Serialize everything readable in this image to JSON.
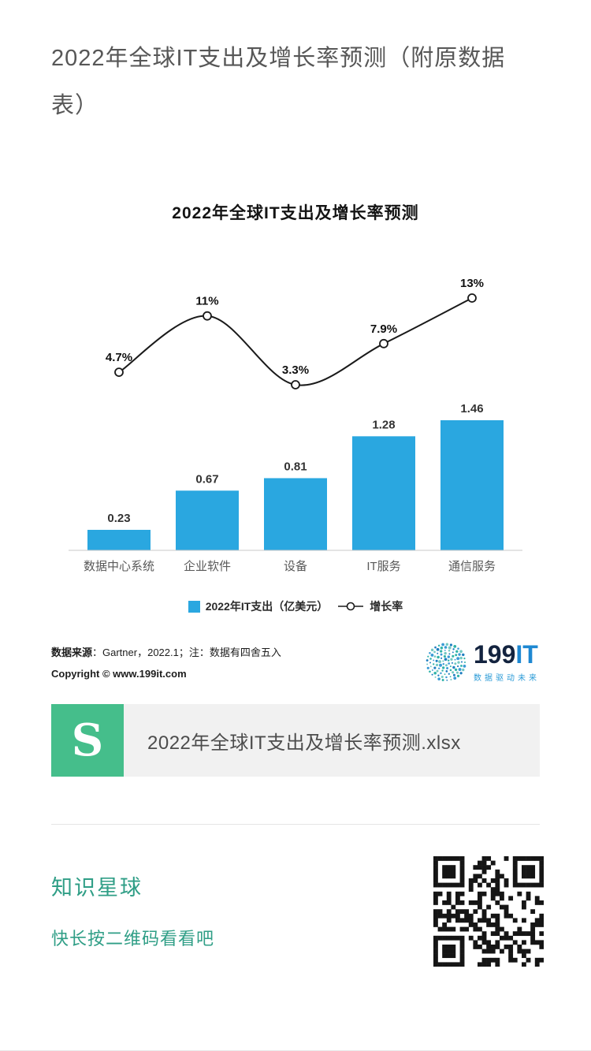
{
  "page": {
    "title": "2022年全球IT支出及增长率预测（附原数据表）"
  },
  "chart_data": {
    "type": "bar",
    "subtype": "combo-bar-line",
    "title": "2022年全球IT支出及增长率预测",
    "categories": [
      "数据中心系统",
      "企业软件",
      "设备",
      "IT服务",
      "通信服务"
    ],
    "series": [
      {
        "name": "2022年IT支出（亿美元）",
        "type": "bar",
        "values": [
          0.23,
          0.67,
          0.81,
          1.28,
          1.46
        ],
        "labels": [
          "0.23",
          "0.67",
          "0.81",
          "1.28",
          "1.46"
        ],
        "color": "#2aa7e0"
      },
      {
        "name": "增长率",
        "type": "line",
        "values": [
          4.7,
          11,
          3.3,
          7.9,
          13
        ],
        "labels": [
          "4.7%",
          "11%",
          "3.3%",
          "7.9%",
          "13%"
        ],
        "color": "#1a1a1a"
      }
    ],
    "legend_position": "bottom",
    "grid": false,
    "ylabel": "",
    "xlabel": ""
  },
  "chart_footer": {
    "source_bold": "数据来源",
    "source_rest": "：Gartner，2022.1；注：数据有四舍五入",
    "copyright": "Copyright © www.199it.com",
    "logo_199": "199",
    "logo_it": "IT",
    "logo_tagline": "数据驱动未来"
  },
  "attachment": {
    "icon_letter": "S",
    "icon_color": "#45be8b",
    "filename": "2022年全球IT支出及增长率预测.xlsx"
  },
  "footer": {
    "brand": "知识星球",
    "prompt": "快长按二维码看看吧",
    "accent_color": "#2f9e86"
  }
}
